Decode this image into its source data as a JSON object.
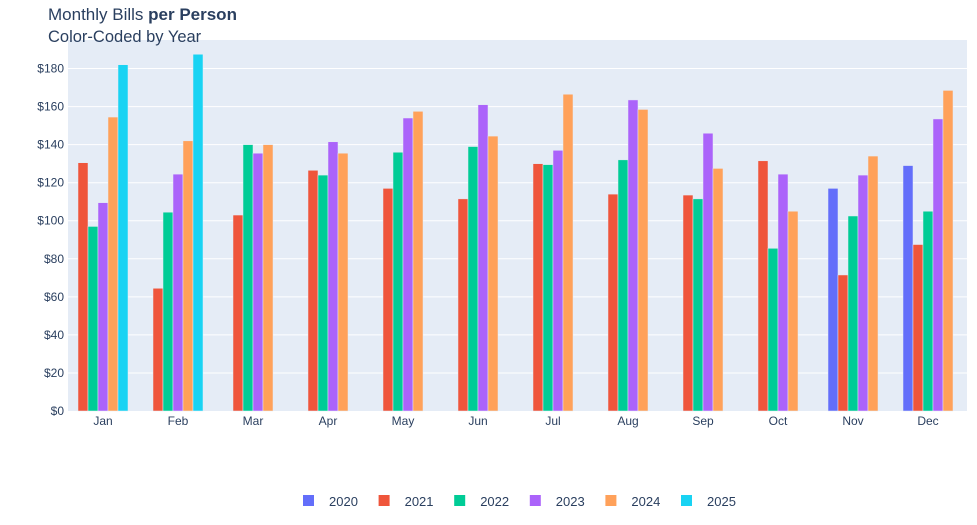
{
  "chart_data": {
    "type": "bar",
    "title_prefix": "Monthly Bills ",
    "title_bold": "per Person",
    "subtitle": "Color-Coded by Year",
    "xlabel": "",
    "ylabel": "",
    "ylim": [
      0,
      195
    ],
    "y_ticks": [
      0,
      20,
      40,
      60,
      80,
      100,
      120,
      140,
      160,
      180
    ],
    "y_tick_labels": [
      "$0",
      "$20",
      "$40",
      "$60",
      "$80",
      "$100",
      "$120",
      "$140",
      "$160",
      "$180"
    ],
    "grid": true,
    "legend_position": "bottom-center",
    "categories": [
      "Jan",
      "Feb",
      "Mar",
      "Apr",
      "May",
      "Jun",
      "Jul",
      "Aug",
      "Sep",
      "Oct",
      "Nov",
      "Dec"
    ],
    "series": [
      {
        "name": "2020",
        "color": "#636efa",
        "values": [
          null,
          null,
          null,
          null,
          null,
          null,
          null,
          null,
          null,
          null,
          117,
          129
        ]
      },
      {
        "name": "2021",
        "color": "#ef553b",
        "values": [
          130.5,
          64.5,
          103,
          126.5,
          117,
          111.5,
          130,
          114,
          113.5,
          131.5,
          71.5,
          87.5
        ]
      },
      {
        "name": "2022",
        "color": "#00cc96",
        "values": [
          97,
          104.5,
          140,
          124,
          136,
          139,
          129.5,
          132,
          111.5,
          85.5,
          102.5,
          105
        ]
      },
      {
        "name": "2023",
        "color": "#ab63fa",
        "values": [
          109.5,
          124.5,
          135.5,
          141.5,
          154,
          161,
          137,
          163.5,
          146,
          124.5,
          124,
          153.5
        ]
      },
      {
        "name": "2024",
        "color": "#ffa15a",
        "values": [
          154.5,
          142,
          140,
          135.5,
          157.5,
          144.5,
          166.5,
          158.5,
          127.5,
          105,
          134,
          168.5
        ]
      },
      {
        "name": "2025",
        "color": "#19d3f3",
        "values": [
          182,
          187.5,
          null,
          null,
          null,
          null,
          null,
          null,
          null,
          null,
          null,
          null
        ]
      }
    ]
  }
}
